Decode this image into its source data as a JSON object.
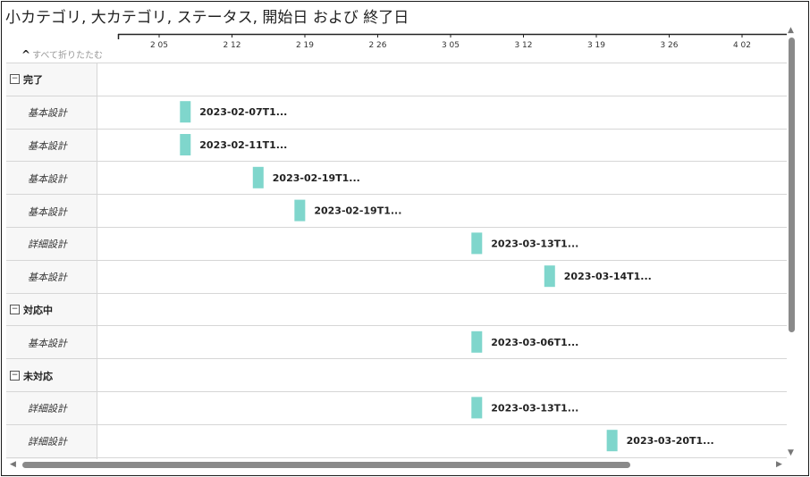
{
  "title": "小カテゴリ, 大カテゴリ, ステータス, 開始日 および 終了日",
  "collapse_all_label": "すべて折りたたむ",
  "icons": {
    "chevron_up": "chevron-up-icon",
    "collapse": "minus-box-icon",
    "scroll_up": "arrow-up-icon",
    "scroll_down": "arrow-down-icon",
    "scroll_left": "arrow-left-icon",
    "scroll_right": "arrow-right-icon"
  },
  "chart_data": {
    "type": "gantt",
    "bar_color": "#7fd6cc",
    "axis_ticks": [
      {
        "date": "2023-02-05",
        "label": "2 05"
      },
      {
        "date": "2023-02-12",
        "label": "2 12"
      },
      {
        "date": "2023-02-19",
        "label": "2 19"
      },
      {
        "date": "2023-02-26",
        "label": "2 26"
      },
      {
        "date": "2023-03-05",
        "label": "3 05"
      },
      {
        "date": "2023-03-12",
        "label": "3 12"
      },
      {
        "date": "2023-03-19",
        "label": "3 19"
      },
      {
        "date": "2023-03-26",
        "label": "3 26"
      },
      {
        "date": "2023-04-02",
        "label": "4 02"
      }
    ],
    "groups": [
      {
        "name": "完了",
        "rows": [
          {
            "category": "基本設計",
            "start": "2023-02-07",
            "label": "2023-02-07T1..."
          },
          {
            "category": "基本設計",
            "start": "2023-02-07",
            "label": "2023-02-11T1..."
          },
          {
            "category": "基本設計",
            "start": "2023-02-14",
            "label": "2023-02-19T1..."
          },
          {
            "category": "基本設計",
            "start": "2023-02-18",
            "label": "2023-02-19T1..."
          },
          {
            "category": "詳細設計",
            "start": "2023-03-07",
            "label": "2023-03-13T1..."
          },
          {
            "category": "基本設計",
            "start": "2023-03-14",
            "label": "2023-03-14T1..."
          }
        ]
      },
      {
        "name": "対応中",
        "rows": [
          {
            "category": "基本設計",
            "start": "2023-03-07",
            "label": "2023-03-06T1..."
          }
        ]
      },
      {
        "name": "未対応",
        "rows": [
          {
            "category": "詳細設計",
            "start": "2023-03-07",
            "label": "2023-03-13T1..."
          },
          {
            "category": "詳細設計",
            "start": "2023-03-20",
            "label": "2023-03-20T1..."
          }
        ]
      }
    ]
  }
}
